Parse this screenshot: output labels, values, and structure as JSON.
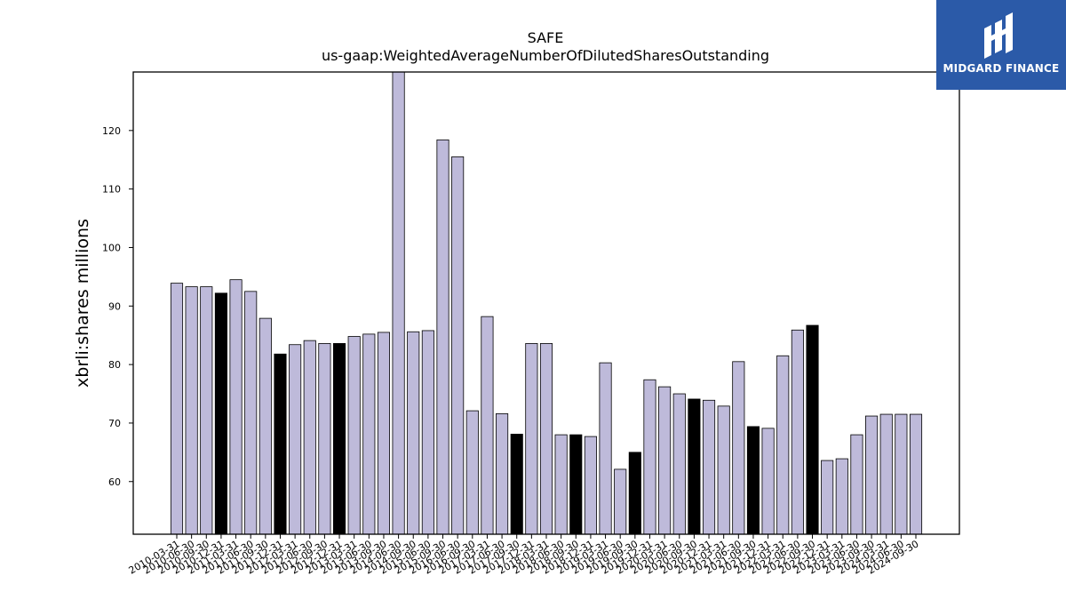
{
  "chart_data": {
    "type": "bar",
    "title": "SAFE",
    "subtitle": "us-gaap:WeightedAverageNumberOfDilutedSharesOutstanding",
    "ylabel": "xbrli:shares millions",
    "xlabel": "",
    "ylim": [
      51,
      130
    ],
    "yticks": [
      60,
      70,
      80,
      90,
      100,
      110,
      120
    ],
    "grid": false,
    "colors": {
      "default": "#bebada",
      "highlight": "#000000",
      "edge": "#000000"
    },
    "categories": [
      "2010-03-31",
      "2010-06-30",
      "2010-09-30",
      "2010-12-31",
      "2011-03-31",
      "2011-06-30",
      "2011-09-30",
      "2011-12-31",
      "2012-03-31",
      "2012-06-30",
      "2012-09-30",
      "2012-12-31",
      "2013-03-31",
      "2013-06-30",
      "2013-09-30",
      "2014-06-30",
      "2014-09-30",
      "2015-06-30",
      "2015-09-30",
      "2016-06-30",
      "2016-09-30",
      "2017-03-31",
      "2017-06-30",
      "2017-09-30",
      "2017-12-31",
      "2018-03-31",
      "2018-06-30",
      "2018-09-30",
      "2018-12-31",
      "2019-03-31",
      "2019-06-30",
      "2019-09-30",
      "2019-12-31",
      "2020-03-31",
      "2020-06-30",
      "2020-09-30",
      "2020-12-31",
      "2021-03-31",
      "2021-06-30",
      "2021-09-30",
      "2021-12-31",
      "2022-03-31",
      "2022-06-30",
      "2022-09-30",
      "2022-12-31",
      "2023-03-31",
      "2023-06-30",
      "2023-09-30",
      "2024-03-31",
      "2024-06-30",
      "2024-09-30"
    ],
    "values": [
      93.9,
      93.3,
      93.3,
      92.2,
      94.5,
      92.5,
      87.9,
      81.8,
      83.4,
      84.1,
      83.6,
      83.6,
      84.8,
      85.2,
      85.5,
      130.0,
      85.6,
      85.8,
      118.4,
      115.5,
      72.1,
      88.2,
      71.6,
      68.1,
      83.6,
      83.6,
      68.0,
      68.0,
      67.7,
      80.3,
      62.1,
      65.0,
      77.4,
      76.2,
      75.0,
      74.1,
      73.9,
      72.9,
      80.5,
      69.4,
      69.1,
      81.5,
      85.9,
      86.7,
      63.6,
      63.9,
      68.0,
      71.2,
      71.5,
      71.5,
      71.5
    ],
    "highlight": [
      false,
      false,
      false,
      true,
      false,
      false,
      false,
      true,
      false,
      false,
      false,
      true,
      false,
      false,
      false,
      false,
      false,
      false,
      false,
      false,
      false,
      false,
      false,
      true,
      false,
      false,
      false,
      true,
      false,
      false,
      false,
      true,
      false,
      false,
      false,
      true,
      false,
      false,
      false,
      true,
      false,
      false,
      false,
      true,
      false,
      false,
      false,
      false,
      false,
      false,
      false
    ]
  },
  "logo": {
    "text": "MIDGARD FINANCE",
    "bg": "#2b5aa8"
  }
}
